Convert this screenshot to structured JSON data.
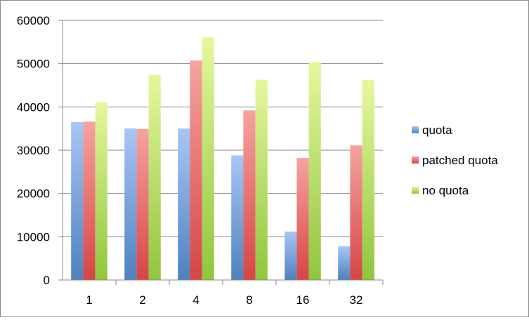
{
  "chart_data": {
    "type": "bar",
    "categories": [
      "1",
      "2",
      "4",
      "8",
      "16",
      "32"
    ],
    "series": [
      {
        "name": "quota",
        "values": [
          36500,
          35000,
          35000,
          28800,
          11200,
          7800
        ],
        "color": "#4f81bd",
        "color_light": "#a9c6f5"
      },
      {
        "name": "patched quota",
        "values": [
          36600,
          34900,
          50700,
          39200,
          28200,
          31100
        ],
        "color": "#d64545",
        "color_light": "#f6a3a0"
      },
      {
        "name": "no quota",
        "values": [
          41100,
          47400,
          56100,
          46300,
          50400,
          46200
        ],
        "color": "#8fc63e",
        "color_light": "#e6f79e"
      }
    ],
    "ylim": [
      0,
      60000
    ],
    "yticks": [
      0,
      10000,
      20000,
      30000,
      40000,
      50000,
      60000
    ],
    "grid": true,
    "legend_position": "right",
    "title": "",
    "xlabel": "",
    "ylabel": ""
  }
}
